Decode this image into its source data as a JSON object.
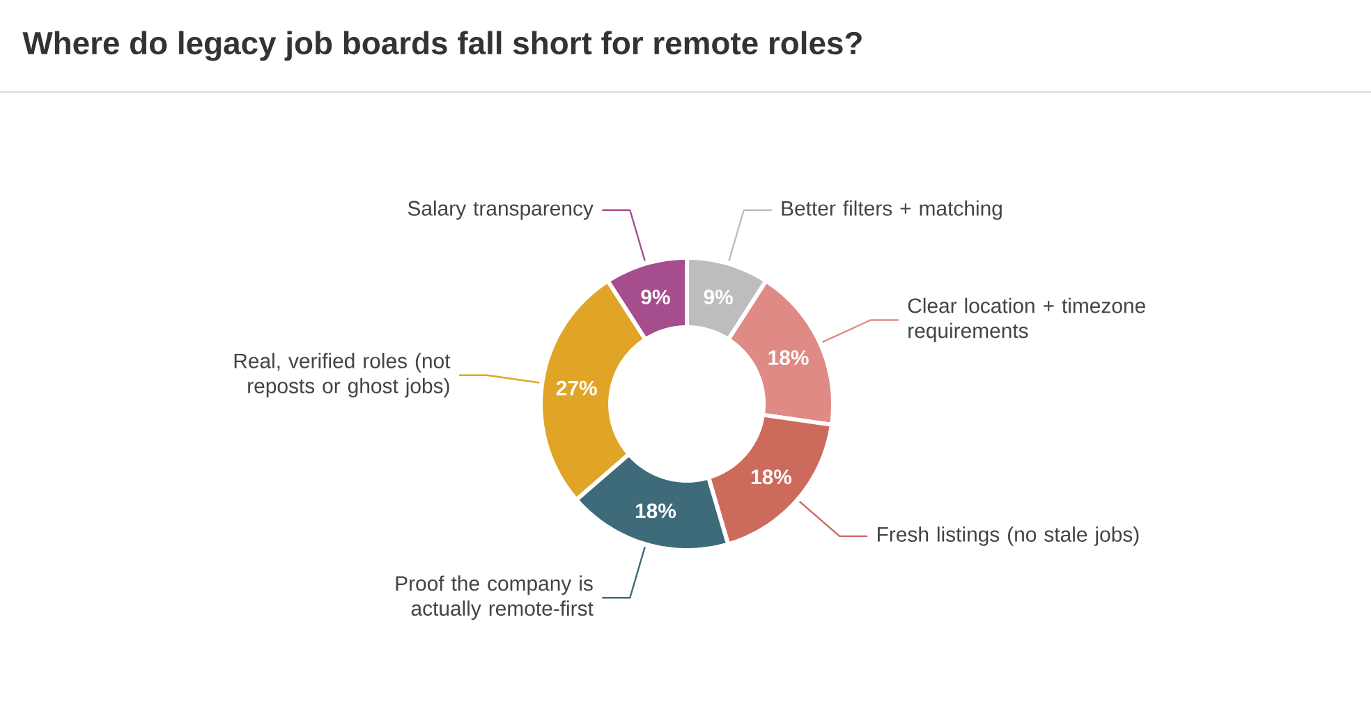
{
  "chart_data": {
    "type": "donut",
    "title": "Where do legacy job boards fall short for remote roles?",
    "categories": [
      "Better filters + matching",
      "Clear location + timezone requirements",
      "Fresh listings (no stale jobs)",
      "Proof the company is actually remote-first",
      "Real, verified roles (not reposts or ghost jobs)",
      "Salary transparency"
    ],
    "values": [
      9,
      18,
      18,
      18,
      27,
      9
    ],
    "value_labels": [
      "9%",
      "18%",
      "18%",
      "18%",
      "27%",
      "9%"
    ],
    "colors": [
      "#bdbdbd",
      "#e08a85",
      "#cc6b5c",
      "#3d6b7a",
      "#e0a526",
      "#a64d8e"
    ]
  }
}
